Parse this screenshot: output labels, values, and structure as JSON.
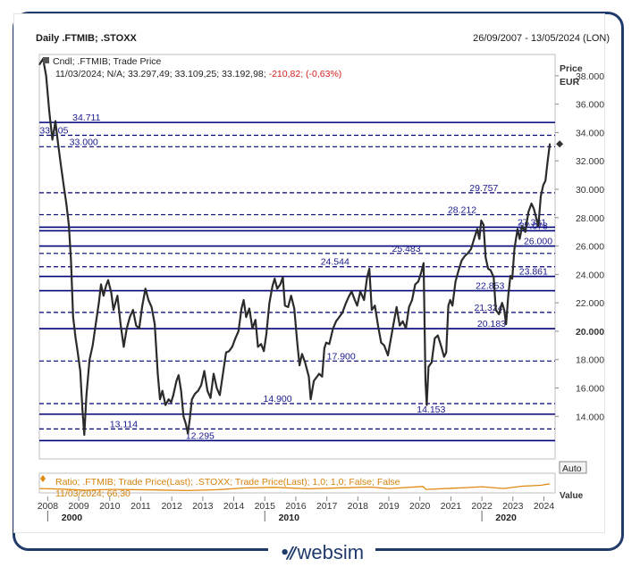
{
  "header": {
    "title": "Daily .FTMIB; .STOXX",
    "date_range": "26/09/2007 - 13/05/2024 (LON)"
  },
  "legend": {
    "series_label": "Cndl; .FTMIB; Trade Price",
    "ohlc_prefix": "11/03/2024; N/A; 33.297,49; 33.109,25; 33.192,98; ",
    "change": "-210,82; (-0,63%)",
    "change_color": "#d32020",
    "ratio_label": "Ratio; .FTMIB; Trade Price(Last); .STOXX; Trade Price(Last);  1,0; 1,0; False; False",
    "ratio_value": "11/03/2024; 66,30",
    "ratio_color": "#d4820c"
  },
  "axis": {
    "price_title": "Price",
    "currency": "EUR",
    "auto_button": "Auto",
    "value_cut": "Value"
  },
  "chart_data": {
    "type": "line",
    "title": "Daily .FTMIB; .STOXX",
    "ylabel": "Price EUR",
    "ylim": [
      11000,
      39500
    ],
    "xlim": [
      2007.73,
      2024.36
    ],
    "yticks": [
      {
        "value": 14000,
        "label": "14.000"
      },
      {
        "value": 16000,
        "label": "16.000"
      },
      {
        "value": 18000,
        "label": "18.000"
      },
      {
        "value": 20000,
        "label": "20.000",
        "bold": true
      },
      {
        "value": 22000,
        "label": "22.000"
      },
      {
        "value": 24000,
        "label": "24.000"
      },
      {
        "value": 26000,
        "label": "26.000"
      },
      {
        "value": 28000,
        "label": "28.000"
      },
      {
        "value": 30000,
        "label": "30.000"
      },
      {
        "value": 32000,
        "label": "32.000"
      },
      {
        "value": 34000,
        "label": "34.000"
      },
      {
        "value": 36000,
        "label": "36.000"
      },
      {
        "value": 38000,
        "label": "38.000"
      }
    ],
    "xticks": [
      {
        "value": 2008,
        "label": "2008"
      },
      {
        "value": 2009,
        "label": "2009"
      },
      {
        "value": 2010,
        "label": "2010"
      },
      {
        "value": 2011,
        "label": "2011"
      },
      {
        "value": 2012,
        "label": "2012"
      },
      {
        "value": 2013,
        "label": "2013"
      },
      {
        "value": 2014,
        "label": "2014"
      },
      {
        "value": 2015,
        "label": "2015"
      },
      {
        "value": 2016,
        "label": "2016"
      },
      {
        "value": 2017,
        "label": "2017"
      },
      {
        "value": 2018,
        "label": "2018"
      },
      {
        "value": 2019,
        "label": "2019"
      },
      {
        "value": 2020,
        "label": "2020"
      },
      {
        "value": 2021,
        "label": "2021"
      },
      {
        "value": 2022,
        "label": "2022"
      },
      {
        "value": 2023,
        "label": "2023"
      },
      {
        "value": 2024,
        "label": "2024"
      }
    ],
    "xticks_major": [
      {
        "value": 2008,
        "label": "2000"
      },
      {
        "value": 2015,
        "label": "2010"
      },
      {
        "value": 2022,
        "label": "2020"
      }
    ],
    "levels": [
      {
        "value": 34711,
        "label": "34.711",
        "style": "solid",
        "label_x": 2008.8
      },
      {
        "value": 33805,
        "label": "33.805",
        "style": "dashed",
        "label_x": 2007.74
      },
      {
        "value": 33000,
        "label": "33.000",
        "style": "dashed",
        "label_x": 2008.7
      },
      {
        "value": 29757,
        "label": "29.757",
        "style": "dashed",
        "label_x": 2021.6
      },
      {
        "value": 28212,
        "label": "28.212",
        "style": "dashed",
        "label_x": 2020.9
      },
      {
        "value": 27331,
        "label": "27.331",
        "style": "solid",
        "label_x": 2023.15
      },
      {
        "value": 27078,
        "label": "27.078",
        "style": "solid",
        "label_x": 2023.2
      },
      {
        "value": 26000,
        "label": "26.000",
        "style": "solid",
        "label_x": 2023.35
      },
      {
        "value": 25483,
        "label": "25.483",
        "style": "dashed",
        "label_x": 2019.1
      },
      {
        "value": 24544,
        "label": "24.544",
        "style": "dashed",
        "label_x": 2016.8
      },
      {
        "value": 23861,
        "label": "23.861",
        "style": "solid",
        "label_x": 2023.2
      },
      {
        "value": 22853,
        "label": "22.853",
        "style": "solid",
        "label_x": 2021.8
      },
      {
        "value": 21324,
        "label": "21.324",
        "style": "dashed",
        "label_x": 2021.75
      },
      {
        "value": 20183,
        "label": "20.183",
        "style": "solid",
        "label_x": 2021.85
      },
      {
        "value": 17900,
        "label": "17.900",
        "style": "dashed",
        "label_x": 2017.0
      },
      {
        "value": 14900,
        "label": "14.900",
        "style": "dashed",
        "label_x": 2014.95
      },
      {
        "value": 14153,
        "label": "14.153",
        "style": "solid",
        "label_x": 2019.9
      },
      {
        "value": 13114,
        "label": "13.114",
        "style": "dashed",
        "label_x": 2010.0
      },
      {
        "value": 12295,
        "label": "12.295",
        "style": "solid",
        "label_x": 2012.45
      }
    ],
    "last_price": 33193,
    "series": [
      {
        "name": ".FTMIB",
        "points": [
          [
            2007.74,
            38800
          ],
          [
            2007.85,
            39200
          ],
          [
            2007.95,
            38000
          ],
          [
            2008.05,
            35500
          ],
          [
            2008.15,
            33500
          ],
          [
            2008.25,
            34800
          ],
          [
            2008.33,
            33300
          ],
          [
            2008.42,
            31800
          ],
          [
            2008.52,
            30200
          ],
          [
            2008.6,
            29000
          ],
          [
            2008.68,
            27500
          ],
          [
            2008.75,
            25000
          ],
          [
            2008.82,
            21000
          ],
          [
            2008.9,
            19500
          ],
          [
            2008.95,
            18800
          ],
          [
            2009.05,
            17200
          ],
          [
            2009.12,
            14500
          ],
          [
            2009.18,
            12700
          ],
          [
            2009.25,
            15500
          ],
          [
            2009.35,
            18000
          ],
          [
            2009.45,
            19000
          ],
          [
            2009.55,
            20500
          ],
          [
            2009.65,
            22000
          ],
          [
            2009.72,
            23300
          ],
          [
            2009.8,
            22500
          ],
          [
            2009.88,
            23200
          ],
          [
            2009.95,
            23600
          ],
          [
            2010.05,
            22700
          ],
          [
            2010.12,
            21500
          ],
          [
            2010.25,
            22500
          ],
          [
            2010.35,
            20500
          ],
          [
            2010.45,
            18900
          ],
          [
            2010.55,
            20200
          ],
          [
            2010.65,
            21000
          ],
          [
            2010.75,
            21500
          ],
          [
            2010.85,
            20400
          ],
          [
            2010.95,
            20200
          ],
          [
            2011.05,
            21800
          ],
          [
            2011.15,
            23000
          ],
          [
            2011.25,
            22200
          ],
          [
            2011.35,
            21700
          ],
          [
            2011.45,
            20500
          ],
          [
            2011.55,
            17000
          ],
          [
            2011.62,
            15200
          ],
          [
            2011.7,
            15800
          ],
          [
            2011.8,
            14800
          ],
          [
            2011.9,
            15200
          ],
          [
            2011.98,
            15000
          ],
          [
            2012.05,
            15500
          ],
          [
            2012.15,
            16500
          ],
          [
            2012.22,
            16900
          ],
          [
            2012.3,
            15800
          ],
          [
            2012.38,
            14000
          ],
          [
            2012.45,
            13500
          ],
          [
            2012.52,
            12800
          ],
          [
            2012.58,
            13800
          ],
          [
            2012.65,
            15200
          ],
          [
            2012.75,
            15600
          ],
          [
            2012.85,
            15800
          ],
          [
            2012.95,
            16200
          ],
          [
            2013.05,
            17200
          ],
          [
            2013.15,
            15800
          ],
          [
            2013.25,
            15300
          ],
          [
            2013.35,
            17000
          ],
          [
            2013.45,
            16000
          ],
          [
            2013.55,
            15500
          ],
          [
            2013.65,
            17000
          ],
          [
            2013.75,
            18500
          ],
          [
            2013.85,
            18600
          ],
          [
            2013.95,
            18900
          ],
          [
            2014.05,
            19500
          ],
          [
            2014.15,
            20000
          ],
          [
            2014.25,
            21600
          ],
          [
            2014.32,
            22200
          ],
          [
            2014.4,
            21000
          ],
          [
            2014.5,
            21600
          ],
          [
            2014.6,
            20200
          ],
          [
            2014.7,
            20800
          ],
          [
            2014.78,
            18900
          ],
          [
            2014.88,
            19100
          ],
          [
            2014.97,
            18600
          ],
          [
            2015.05,
            19800
          ],
          [
            2015.15,
            22000
          ],
          [
            2015.25,
            23200
          ],
          [
            2015.32,
            23700
          ],
          [
            2015.4,
            23000
          ],
          [
            2015.5,
            23300
          ],
          [
            2015.58,
            23800
          ],
          [
            2015.65,
            21800
          ],
          [
            2015.75,
            21700
          ],
          [
            2015.85,
            22500
          ],
          [
            2015.95,
            21600
          ],
          [
            2016.05,
            19100
          ],
          [
            2016.12,
            17600
          ],
          [
            2016.2,
            18400
          ],
          [
            2016.3,
            17800
          ],
          [
            2016.42,
            16800
          ],
          [
            2016.48,
            15200
          ],
          [
            2016.58,
            16500
          ],
          [
            2016.65,
            16700
          ],
          [
            2016.75,
            17000
          ],
          [
            2016.85,
            16800
          ],
          [
            2016.92,
            18800
          ],
          [
            2016.98,
            19200
          ],
          [
            2017.08,
            19100
          ],
          [
            2017.2,
            20200
          ],
          [
            2017.3,
            20700
          ],
          [
            2017.4,
            21000
          ],
          [
            2017.5,
            21300
          ],
          [
            2017.6,
            21900
          ],
          [
            2017.7,
            22400
          ],
          [
            2017.8,
            22800
          ],
          [
            2017.9,
            22200
          ],
          [
            2017.98,
            21800
          ],
          [
            2018.08,
            22800
          ],
          [
            2018.2,
            22200
          ],
          [
            2018.3,
            23800
          ],
          [
            2018.37,
            24400
          ],
          [
            2018.45,
            21500
          ],
          [
            2018.55,
            21800
          ],
          [
            2018.65,
            20400
          ],
          [
            2018.75,
            19200
          ],
          [
            2018.85,
            19000
          ],
          [
            2018.97,
            18300
          ],
          [
            2019.05,
            19300
          ],
          [
            2019.15,
            20500
          ],
          [
            2019.25,
            21700
          ],
          [
            2019.35,
            20400
          ],
          [
            2019.45,
            20700
          ],
          [
            2019.55,
            20200
          ],
          [
            2019.65,
            21700
          ],
          [
            2019.75,
            22200
          ],
          [
            2019.85,
            23300
          ],
          [
            2019.95,
            23500
          ],
          [
            2020.05,
            24200
          ],
          [
            2020.12,
            24800
          ],
          [
            2020.18,
            16500
          ],
          [
            2020.22,
            14800
          ],
          [
            2020.28,
            17500
          ],
          [
            2020.38,
            17800
          ],
          [
            2020.48,
            19500
          ],
          [
            2020.58,
            19700
          ],
          [
            2020.68,
            19000
          ],
          [
            2020.78,
            18200
          ],
          [
            2020.85,
            18500
          ],
          [
            2020.92,
            21800
          ],
          [
            2020.98,
            22200
          ],
          [
            2021.05,
            21800
          ],
          [
            2021.15,
            23500
          ],
          [
            2021.25,
            24300
          ],
          [
            2021.35,
            25000
          ],
          [
            2021.45,
            25300
          ],
          [
            2021.55,
            25500
          ],
          [
            2021.65,
            25800
          ],
          [
            2021.75,
            26500
          ],
          [
            2021.85,
            27200
          ],
          [
            2021.92,
            26500
          ],
          [
            2021.98,
            27800
          ],
          [
            2022.05,
            27500
          ],
          [
            2022.12,
            25200
          ],
          [
            2022.2,
            24400
          ],
          [
            2022.28,
            24300
          ],
          [
            2022.38,
            23800
          ],
          [
            2022.45,
            21500
          ],
          [
            2022.55,
            21200
          ],
          [
            2022.65,
            22000
          ],
          [
            2022.72,
            21500
          ],
          [
            2022.78,
            20500
          ],
          [
            2022.85,
            22500
          ],
          [
            2022.92,
            23900
          ],
          [
            2022.98,
            23700
          ],
          [
            2023.05,
            25800
          ],
          [
            2023.15,
            27200
          ],
          [
            2023.22,
            26500
          ],
          [
            2023.3,
            27400
          ],
          [
            2023.4,
            27000
          ],
          [
            2023.5,
            28400
          ],
          [
            2023.6,
            29000
          ],
          [
            2023.68,
            28600
          ],
          [
            2023.75,
            28000
          ],
          [
            2023.82,
            27400
          ],
          [
            2023.9,
            29500
          ],
          [
            2023.98,
            30300
          ],
          [
            2024.05,
            30600
          ],
          [
            2024.12,
            32000
          ],
          [
            2024.19,
            33190
          ]
        ]
      },
      {
        "name": "Ratio",
        "points": [
          [
            2007.74,
            0.3
          ],
          [
            2008.5,
            0.25
          ],
          [
            2009.2,
            0.15
          ],
          [
            2010.0,
            0.22
          ],
          [
            2011.5,
            0.18
          ],
          [
            2012.5,
            0.12
          ],
          [
            2013.5,
            0.2
          ],
          [
            2014.3,
            0.35
          ],
          [
            2015.3,
            0.4
          ],
          [
            2016.4,
            0.28
          ],
          [
            2017.5,
            0.36
          ],
          [
            2018.4,
            0.42
          ],
          [
            2019.0,
            0.3
          ],
          [
            2020.1,
            0.48
          ],
          [
            2020.2,
            0.22
          ],
          [
            2021.5,
            0.38
          ],
          [
            2022.0,
            0.45
          ],
          [
            2022.7,
            0.3
          ],
          [
            2023.3,
            0.5
          ],
          [
            2023.9,
            0.58
          ],
          [
            2024.19,
            0.7
          ]
        ]
      }
    ]
  }
}
